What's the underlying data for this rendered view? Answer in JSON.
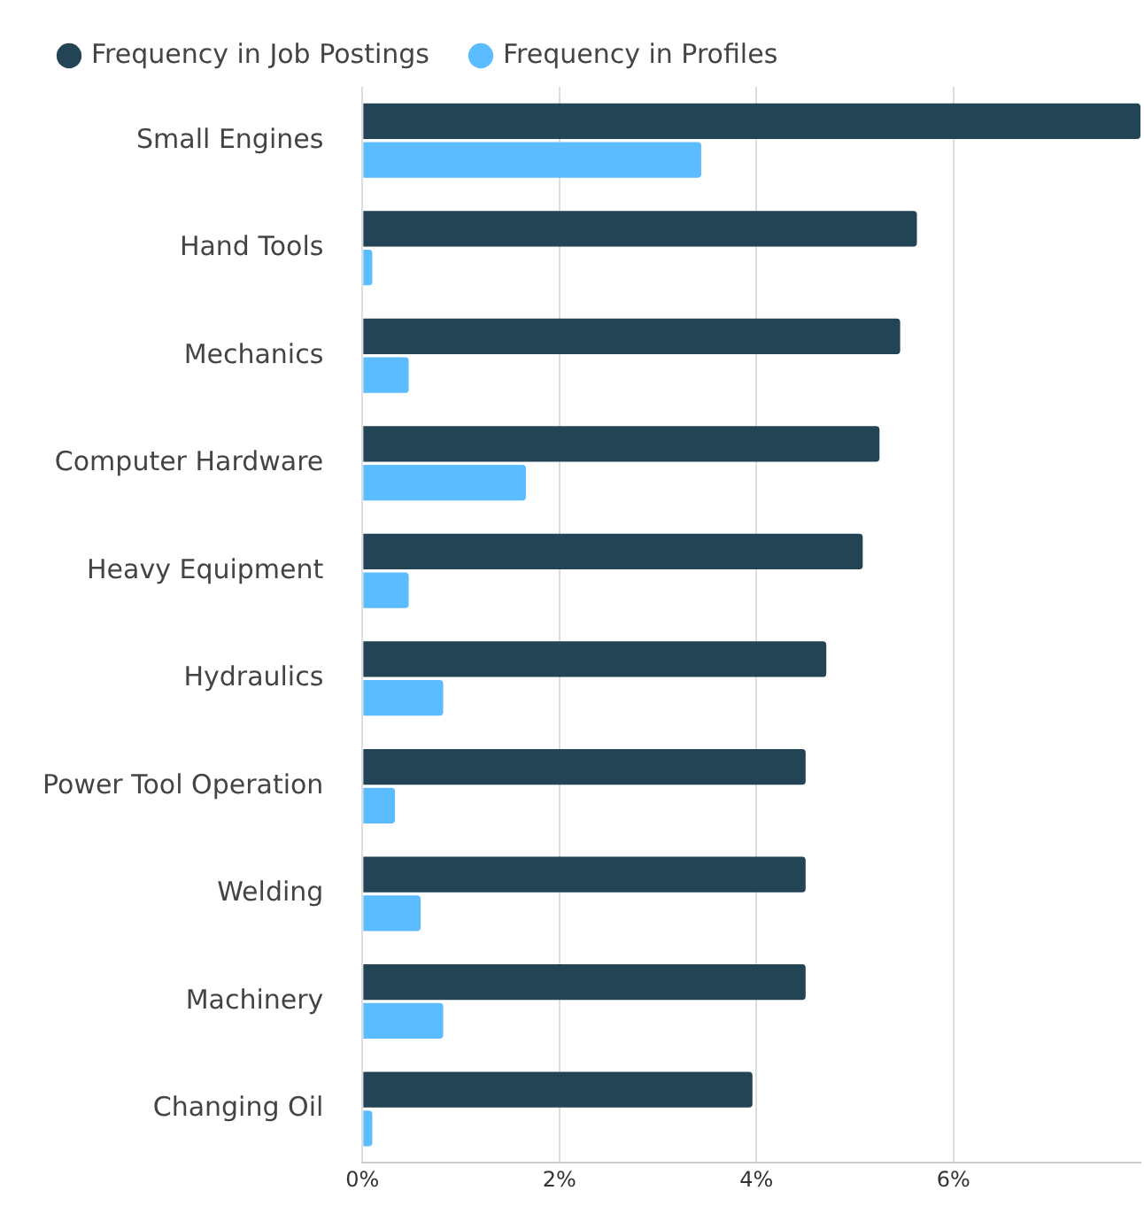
{
  "chart_data": {
    "type": "bar",
    "orientation": "horizontal",
    "categories": [
      "Small Engines",
      "Hand Tools",
      "Mechanics",
      "Computer Hardware",
      "Heavy Equipment",
      "Hydraulics",
      "Power Tool Operation",
      "Welding",
      "Machinery",
      "Changing Oil"
    ],
    "series": [
      {
        "name": "Frequency in Job Postings",
        "color": "#224455",
        "values": [
          7.9,
          5.63,
          5.46,
          5.25,
          5.08,
          4.71,
          4.5,
          4.5,
          4.5,
          3.96
        ]
      },
      {
        "name": "Frequency in Profiles",
        "color": "#5bbcff",
        "values": [
          3.44,
          0.1,
          0.47,
          1.66,
          0.47,
          0.82,
          0.33,
          0.59,
          0.82,
          0.1
        ]
      }
    ],
    "xlim": [
      0,
      7.9
    ],
    "xticks": [
      {
        "value": 0,
        "label": "0%"
      },
      {
        "value": 2,
        "label": "2%"
      },
      {
        "value": 4,
        "label": "4%"
      },
      {
        "value": 6,
        "label": "6%"
      }
    ],
    "grid": "x",
    "legend": "top left"
  }
}
